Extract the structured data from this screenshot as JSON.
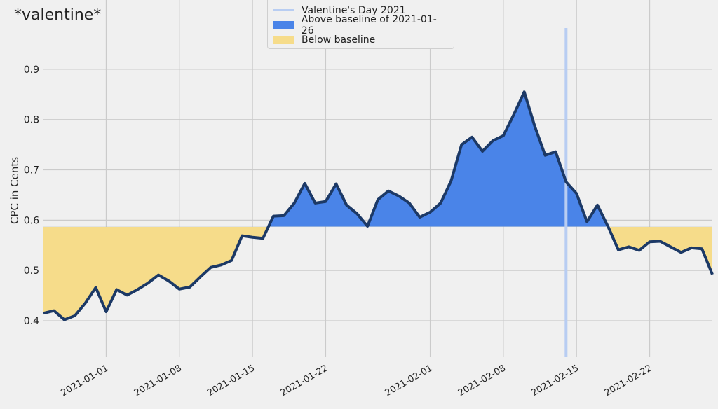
{
  "chart_data": {
    "type": "area",
    "title": "*valentine*",
    "xlabel": "",
    "ylabel": "CPC in Cents",
    "x_start": "2020-12-26",
    "x_end": "2021-02-28",
    "x_step": "1 day",
    "xticks": [
      "2021-01-01",
      "2021-01-08",
      "2021-01-15",
      "2021-01-22",
      "2021-02-01",
      "2021-02-08",
      "2021-02-15",
      "2021-02-22"
    ],
    "xtick_day_offsets": [
      6,
      13,
      20,
      27,
      37,
      44,
      51,
      58
    ],
    "yticks": [
      "0.4",
      "0.5",
      "0.6",
      "0.7",
      "0.8",
      "0.9"
    ],
    "ylim": [
      0.3276,
      0.982
    ],
    "grid": true,
    "baseline": 0.587,
    "valentine_day_offset": 50,
    "values": [
      0.415,
      0.42,
      0.402,
      0.41,
      0.435,
      0.466,
      0.418,
      0.462,
      0.451,
      0.462,
      0.475,
      0.491,
      0.479,
      0.463,
      0.467,
      0.487,
      0.506,
      0.511,
      0.52,
      0.569,
      0.566,
      0.564,
      0.608,
      0.609,
      0.634,
      0.673,
      0.634,
      0.637,
      0.672,
      0.63,
      0.613,
      0.588,
      0.641,
      0.658,
      0.648,
      0.634,
      0.606,
      0.616,
      0.634,
      0.678,
      0.75,
      0.765,
      0.737,
      0.758,
      0.768,
      0.81,
      0.855,
      0.787,
      0.729,
      0.736,
      0.676,
      0.653,
      0.597,
      0.63,
      0.588,
      0.541,
      0.547,
      0.54,
      0.557,
      0.558,
      0.547,
      0.536,
      0.545,
      0.543,
      0.492
    ],
    "legend": {
      "placement": "top-center",
      "entries": [
        "Valentine's Day 2021",
        "Above baseline of 2021-01-26",
        "Below baseline"
      ]
    },
    "colors": {
      "line": "#1c3966",
      "above": "#4a84e8",
      "below": "#f6dc8a",
      "valentine": "#b8cdf2",
      "grid": "#cbcbcb",
      "background": "#f0f0f0"
    }
  }
}
